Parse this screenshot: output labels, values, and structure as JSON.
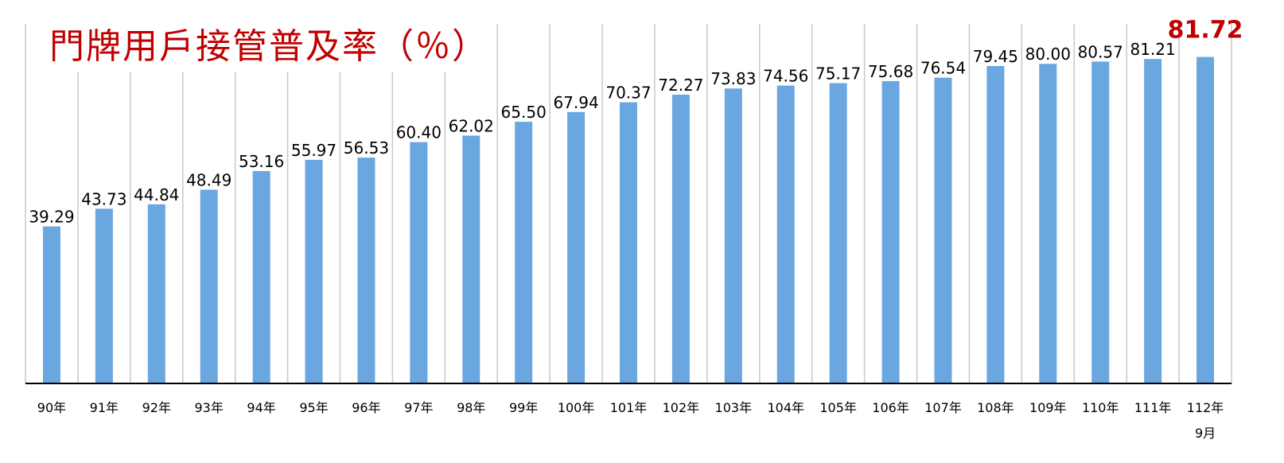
{
  "colors": {
    "bar": "#6aa6e0",
    "title": "#c00000",
    "highlight": "#c00000",
    "grid": "#c8c8c8",
    "axis": "#000000",
    "label": "#000000"
  },
  "chart_data": {
    "type": "bar",
    "title": "門牌用戶接管普及率（％）",
    "xlabel": "",
    "ylabel": "",
    "ylim": [
      0,
      90
    ],
    "grid": "vertical category separators",
    "legend": "none",
    "categories": [
      "90年",
      "91年",
      "92年",
      "93年",
      "94年",
      "95年",
      "96年",
      "97年",
      "98年",
      "99年",
      "100年",
      "101年",
      "102年",
      "103年",
      "104年",
      "105年",
      "106年",
      "107年",
      "108年",
      "109年",
      "110年",
      "111年",
      "112年"
    ],
    "category_sublabels": [
      "",
      "",
      "",
      "",
      "",
      "",
      "",
      "",
      "",
      "",
      "",
      "",
      "",
      "",
      "",
      "",
      "",
      "",
      "",
      "",
      "",
      "",
      "9月"
    ],
    "values": [
      39.29,
      43.73,
      44.84,
      48.49,
      53.16,
      55.97,
      56.53,
      60.4,
      62.02,
      65.5,
      67.94,
      70.37,
      72.27,
      73.83,
      74.56,
      75.17,
      75.68,
      76.54,
      79.45,
      80.0,
      80.57,
      81.21,
      81.72
    ],
    "data_labels": [
      "39.29",
      "43.73",
      "44.84",
      "48.49",
      "53.16",
      "55.97",
      "56.53",
      "60.40",
      "62.02",
      "65.50",
      "67.94",
      "70.37",
      "72.27",
      "73.83",
      "74.56",
      "75.17",
      "75.68",
      "76.54",
      "79.45",
      "80.00",
      "80.57",
      "81.21",
      "81.72"
    ],
    "highlighted_index": 22
  }
}
